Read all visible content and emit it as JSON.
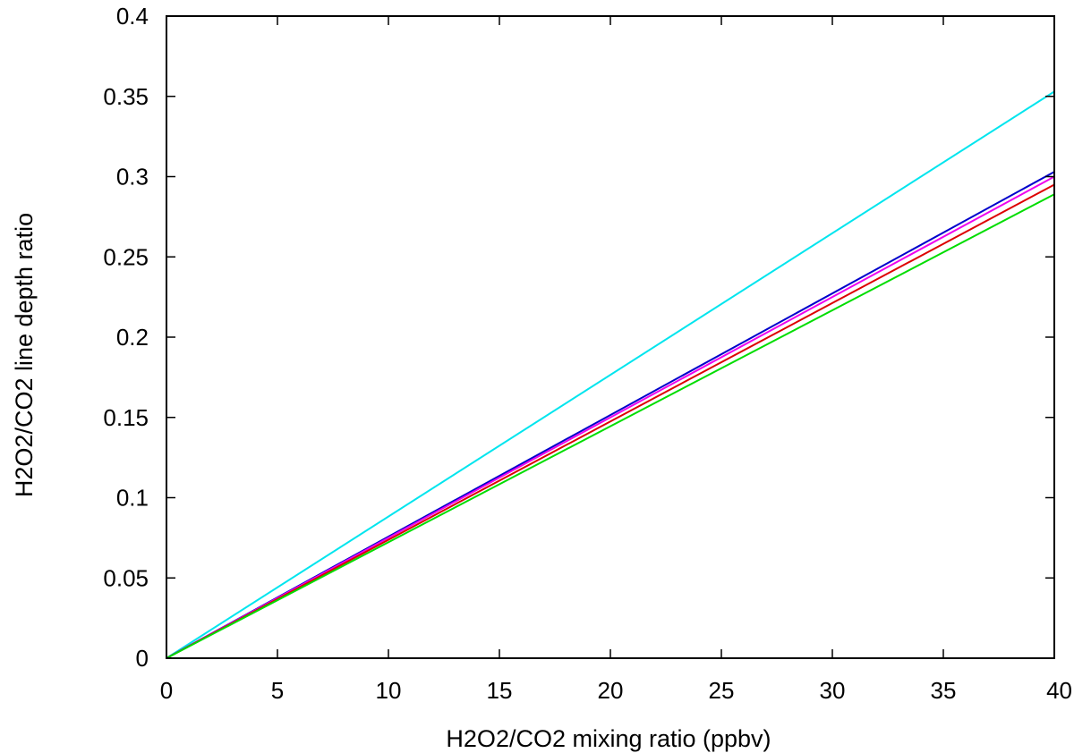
{
  "chart_data": {
    "type": "line",
    "title": "",
    "xlabel": "H2O2/CO2 mixing ratio (ppbv)",
    "ylabel": "H2O2/CO2 line depth ratio",
    "xlim": [
      0,
      40
    ],
    "ylim": [
      0,
      0.4
    ],
    "xticks": [
      0,
      5,
      10,
      15,
      20,
      25,
      30,
      35,
      40
    ],
    "yticks": [
      0,
      0.05,
      0.1,
      0.15,
      0.2,
      0.25,
      0.3,
      0.35,
      0.4
    ],
    "xtick_labels": [
      "0",
      "5",
      "10",
      "15",
      "20",
      "25",
      "30",
      "35",
      "40"
    ],
    "ytick_labels": [
      "0",
      "0.05",
      "0.1",
      "0.15",
      "0.2",
      "0.25",
      "0.3",
      "0.35",
      "0.4"
    ],
    "grid": false,
    "legend": "none",
    "series": [
      {
        "name": "cyan",
        "color": "#00e5ee",
        "x": [
          0,
          40
        ],
        "y": [
          0,
          0.353
        ]
      },
      {
        "name": "blue",
        "color": "#0000cc",
        "x": [
          0,
          40
        ],
        "y": [
          0,
          0.303
        ]
      },
      {
        "name": "magenta",
        "color": "#ee00ee",
        "x": [
          0,
          40
        ],
        "y": [
          0,
          0.3
        ]
      },
      {
        "name": "red",
        "color": "#dd0000",
        "x": [
          0,
          40
        ],
        "y": [
          0,
          0.295
        ]
      },
      {
        "name": "green",
        "color": "#00dd00",
        "x": [
          0,
          40
        ],
        "y": [
          0,
          0.289
        ]
      }
    ]
  }
}
